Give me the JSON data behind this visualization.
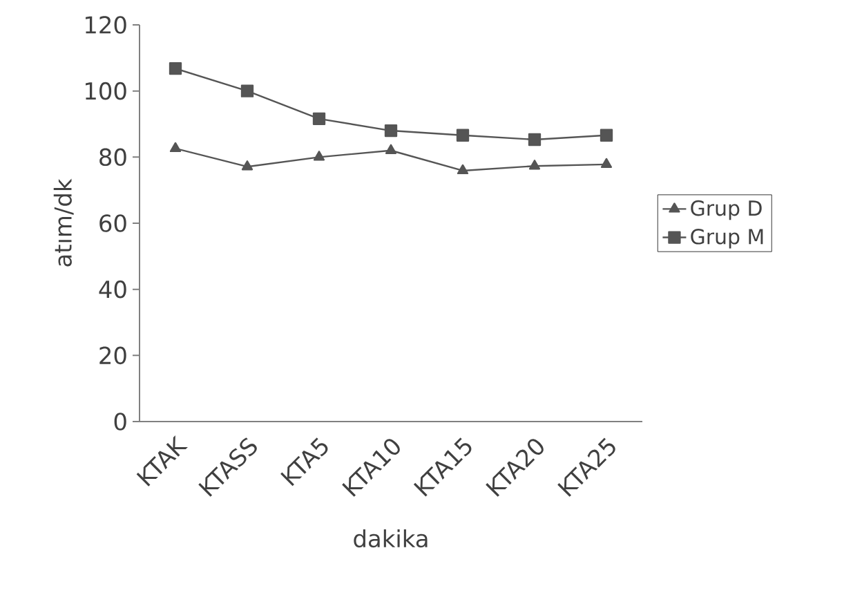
{
  "chart_data": {
    "type": "line",
    "xlabel": "dakika",
    "ylabel": "atım/dk",
    "categories": [
      "KTAK",
      "KTASS",
      "KTA5",
      "KTA10",
      "KTA15",
      "KTA20",
      "KTA25"
    ],
    "series": [
      {
        "name": "Grup D",
        "color": "#555555",
        "marker": "triangle",
        "values": [
          82.6,
          77.1,
          80,
          82,
          75.9,
          77.3,
          77.8
        ]
      },
      {
        "name": "Grup M",
        "color": "#555555",
        "marker": "square",
        "values": [
          106.8,
          100,
          91.6,
          88,
          86.6,
          85.3,
          86.6
        ]
      }
    ],
    "ylim": [
      0,
      120
    ],
    "yticks": [
      0,
      20,
      40,
      60,
      80,
      100,
      120
    ],
    "grid": false,
    "legend": "right",
    "line_style": "solid"
  }
}
